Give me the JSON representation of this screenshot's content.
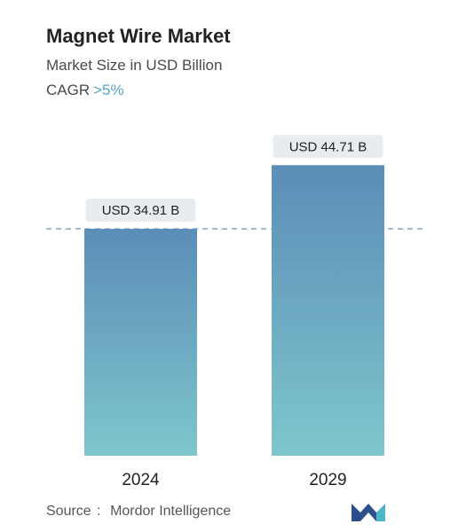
{
  "header": {
    "title": "Magnet Wire Market",
    "subtitle": "Market Size in USD Billion",
    "cagr_label": "CAGR",
    "cagr_value": ">5%"
  },
  "chart_data": {
    "type": "bar",
    "categories": [
      "2024",
      "2029"
    ],
    "values": [
      34.91,
      44.71
    ],
    "data_labels": [
      "USD 34.91 B",
      "USD 44.71 B"
    ],
    "title": "Magnet Wire Market",
    "subtitle": "Market Size in USD Billion",
    "ylabel": "",
    "xlabel": "",
    "reference_line": 34.91,
    "grid": false,
    "colors": {
      "bar_top": "#5b8db8",
      "bar_bottom": "#7ec6cc",
      "label_bg": "#e8ecef",
      "dashed_line": "#6b93b0"
    }
  },
  "footer": {
    "source_label": "Source",
    "source_separator": ":",
    "source_name": "Mordor Intelligence",
    "logo_colors": {
      "left": "#2b4f8a",
      "right": "#4db6c7"
    }
  }
}
